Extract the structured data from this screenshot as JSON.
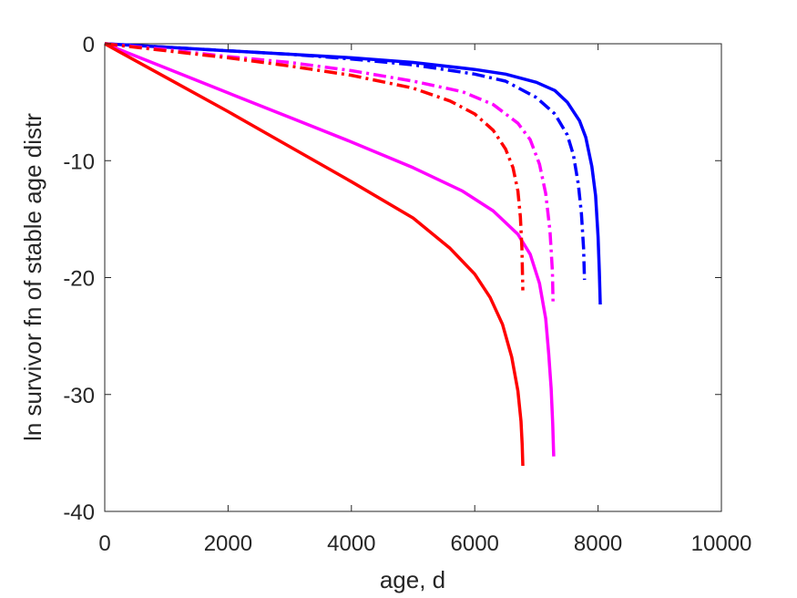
{
  "chart_data": {
    "type": "line",
    "title": "",
    "xlabel": "age, d",
    "ylabel": "ln survivor fn of stable age distr",
    "xlim": [
      0,
      10000
    ],
    "ylim": [
      -40,
      0
    ],
    "xticks": [
      0,
      2000,
      4000,
      6000,
      8000,
      10000
    ],
    "yticks": [
      -40,
      -30,
      -20,
      -10,
      0
    ],
    "xtick_labels": [
      "0",
      "2000",
      "4000",
      "6000",
      "8000",
      "10000"
    ],
    "ytick_labels": [
      "-40",
      "-30",
      "-20",
      "-10",
      "0"
    ],
    "grid": false,
    "legend": "none",
    "series": [
      {
        "color": "#0000ff",
        "style": "solid",
        "x": [
          0,
          1000,
          2000,
          3000,
          4000,
          5000,
          6000,
          6500,
          7000,
          7300,
          7500,
          7700,
          7800,
          7900,
          7960,
          8000,
          8020,
          8035
        ],
        "y": [
          0,
          -0.3,
          -0.6,
          -0.9,
          -1.2,
          -1.6,
          -2.2,
          -2.6,
          -3.3,
          -4.0,
          -5.0,
          -6.6,
          -8.0,
          -10.5,
          -13.0,
          -16.5,
          -19.5,
          -22.3
        ]
      },
      {
        "color": "#0000ff",
        "style": "dashdot",
        "x": [
          0,
          1000,
          2000,
          3000,
          4000,
          5000,
          6000,
          6500,
          7000,
          7300,
          7500,
          7600,
          7680,
          7730,
          7765,
          7780
        ],
        "y": [
          0,
          -0.3,
          -0.6,
          -0.9,
          -1.3,
          -1.8,
          -2.6,
          -3.2,
          -4.6,
          -6.0,
          -7.8,
          -9.5,
          -12.0,
          -14.5,
          -17.5,
          -20.2
        ]
      },
      {
        "color": "#ff00ff",
        "style": "solid",
        "x": [
          0,
          1000,
          2000,
          3000,
          4000,
          5000,
          5800,
          6300,
          6700,
          6900,
          7050,
          7150,
          7200,
          7240,
          7265,
          7280
        ],
        "y": [
          0,
          -2.1,
          -4.2,
          -6.3,
          -8.4,
          -10.6,
          -12.6,
          -14.3,
          -16.3,
          -18.0,
          -20.5,
          -23.5,
          -26.5,
          -29.5,
          -32.5,
          -35.3
        ]
      },
      {
        "color": "#ff00ff",
        "style": "dashdot",
        "x": [
          0,
          1000,
          2000,
          3000,
          4000,
          5000,
          5800,
          6300,
          6700,
          6900,
          7050,
          7150,
          7220,
          7260,
          7270
        ],
        "y": [
          0,
          -0.5,
          -1.1,
          -1.6,
          -2.3,
          -3.2,
          -4.1,
          -5.2,
          -6.8,
          -8.2,
          -10.3,
          -12.8,
          -16.0,
          -19.5,
          -22.2
        ]
      },
      {
        "color": "#ff0000",
        "style": "solid",
        "x": [
          0,
          1000,
          2000,
          3000,
          4000,
          5000,
          5600,
          6000,
          6250,
          6450,
          6600,
          6700,
          6750,
          6770,
          6780
        ],
        "y": [
          0,
          -2.9,
          -5.8,
          -8.8,
          -11.8,
          -14.9,
          -17.5,
          -19.7,
          -21.7,
          -24.0,
          -26.8,
          -29.7,
          -32.3,
          -34.3,
          -36.1
        ]
      },
      {
        "color": "#ff0000",
        "style": "dashdot",
        "x": [
          0,
          1000,
          2000,
          3000,
          4000,
          5000,
          5600,
          6000,
          6300,
          6500,
          6620,
          6700,
          6740,
          6765,
          6780
        ],
        "y": [
          0,
          -0.6,
          -1.2,
          -1.9,
          -2.7,
          -3.8,
          -4.9,
          -6.0,
          -7.4,
          -9.0,
          -10.6,
          -12.6,
          -14.8,
          -17.5,
          -21.1
        ]
      }
    ]
  }
}
